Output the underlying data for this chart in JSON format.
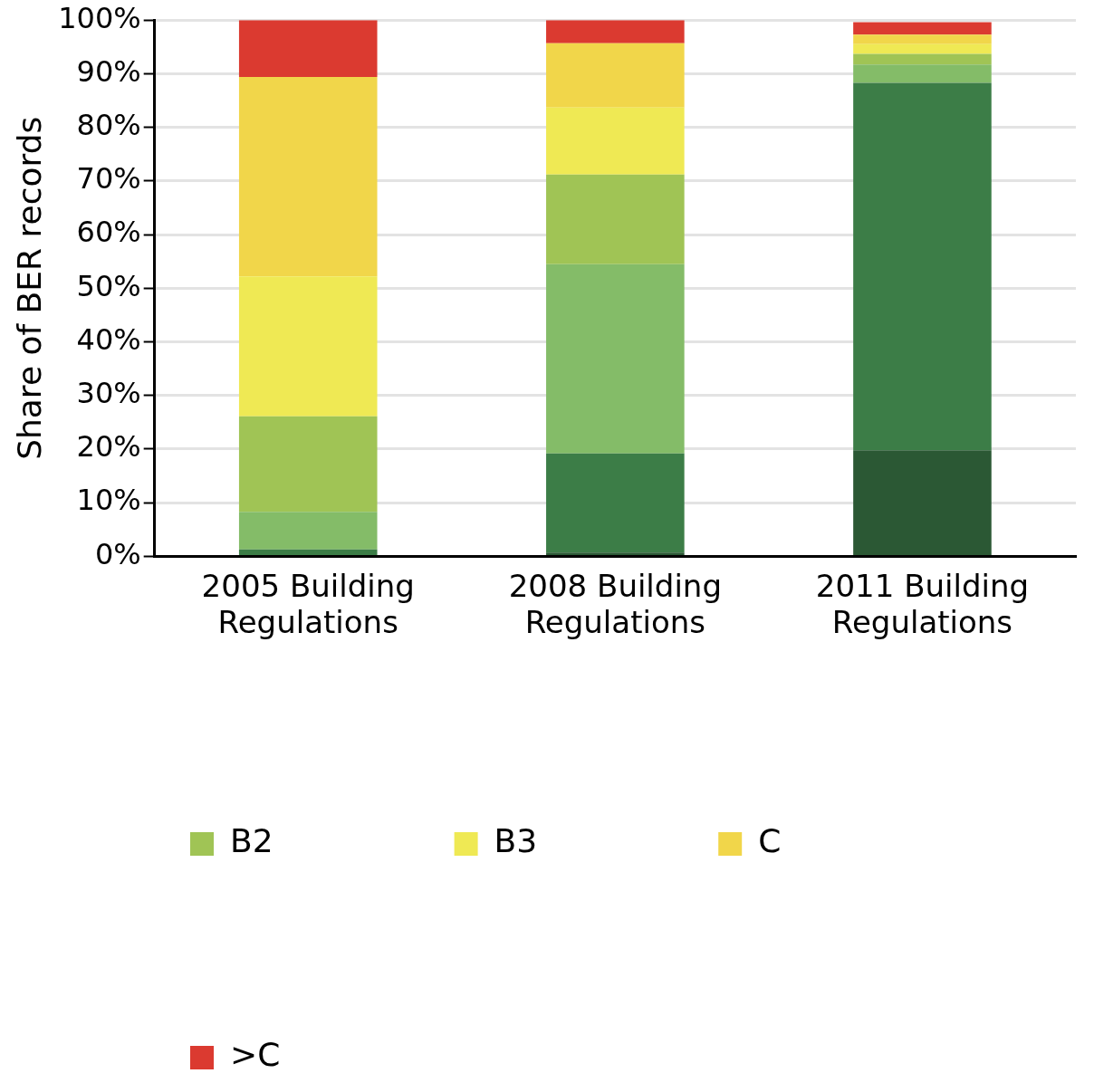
{
  "chart_data": {
    "type": "bar",
    "stacked": true,
    "ylabel": "Share of BER records",
    "categories": [
      "2005 Building Regulations",
      "2008 Building Regulations",
      "2011 Building Regulations"
    ],
    "series": [
      {
        "color": "#2b5834",
        "values": [
          0,
          0.7,
          19.8
        ]
      },
      {
        "color": "#3c7d47",
        "values": [
          1.3,
          18.5,
          68.5
        ]
      },
      {
        "color": "#84bc68",
        "values": [
          7.0,
          35.3,
          3.4
        ]
      },
      {
        "name": "B2",
        "color": "#a0c455",
        "values": [
          17.8,
          16.7,
          2.0
        ]
      },
      {
        "name": "B3",
        "color": "#efe954",
        "values": [
          26.1,
          12.5,
          1.8
        ]
      },
      {
        "name": "C",
        "color": "#f1d64a",
        "values": [
          37.2,
          12.0,
          1.8
        ]
      },
      {
        "name": ">C",
        "color": "#db3a30",
        "values": [
          10.6,
          4.3,
          2.3
        ]
      }
    ],
    "ylim": [
      0,
      100
    ],
    "yticks": [
      {
        "value": 0,
        "label": "0%"
      },
      {
        "value": 10,
        "label": "10%"
      },
      {
        "value": 20,
        "label": "20%"
      },
      {
        "value": 30,
        "label": "30%"
      },
      {
        "value": 40,
        "label": "40%"
      },
      {
        "value": 50,
        "label": "50%"
      },
      {
        "value": 60,
        "label": "60%"
      },
      {
        "value": 70,
        "label": "70%"
      },
      {
        "value": 80,
        "label": "80%"
      },
      {
        "value": 90,
        "label": "90%"
      },
      {
        "value": 100,
        "label": "100%"
      }
    ],
    "grid": "y",
    "legend": "bottom"
  }
}
